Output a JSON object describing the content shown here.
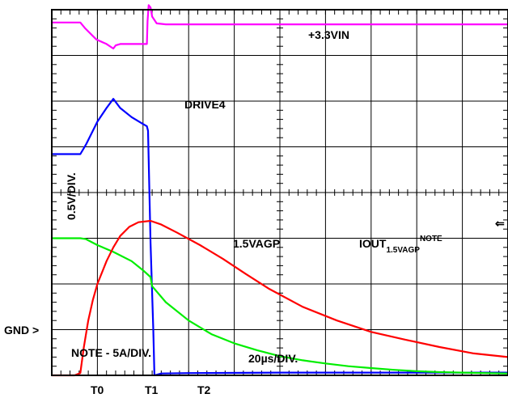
{
  "chart_data": {
    "type": "line",
    "x_unit_label": "20µs/DIV.",
    "x_range": [
      0,
      200
    ],
    "y_range": [
      0,
      8
    ],
    "grid": true,
    "time_markers": [
      {
        "name": "T0",
        "x": 12.5
      },
      {
        "name": "T1",
        "x": 27.0
      },
      {
        "name": "T2",
        "x": 43.3
      }
    ],
    "series": [
      {
        "name": "+3.3VIN",
        "color": "#ff00ff",
        "points": [
          [
            0,
            7.72
          ],
          [
            12.5,
            7.72
          ],
          [
            14.5,
            7.6
          ],
          [
            19.5,
            7.35
          ],
          [
            24,
            7.25
          ],
          [
            27,
            7.15
          ],
          [
            28,
            7.22
          ],
          [
            30,
            7.25
          ],
          [
            41.7,
            7.25
          ],
          [
            42,
            7.75
          ],
          [
            42.5,
            8.1
          ],
          [
            43.3,
            8.05
          ],
          [
            44,
            7.85
          ],
          [
            46,
            7.7
          ],
          [
            50,
            7.68
          ],
          [
            200,
            7.68
          ]
        ]
      },
      {
        "name": "DRIVE4",
        "color": "#0000ff",
        "points": [
          [
            0,
            4.84
          ],
          [
            10,
            4.84
          ],
          [
            12.5,
            4.84
          ],
          [
            15,
            5.05
          ],
          [
            20,
            5.55
          ],
          [
            24,
            5.85
          ],
          [
            27,
            6.05
          ],
          [
            30,
            5.85
          ],
          [
            35,
            5.65
          ],
          [
            40,
            5.5
          ],
          [
            41.7,
            5.45
          ],
          [
            42.2,
            5.35
          ],
          [
            43.3,
            2.9
          ],
          [
            44.5,
            1.0
          ],
          [
            45,
            0.0
          ],
          [
            48,
            0.04
          ],
          [
            60,
            0.05
          ],
          [
            100,
            0.06
          ],
          [
            150,
            0.06
          ],
          [
            200,
            0.06
          ]
        ]
      },
      {
        "name": "1.5VAGP",
        "color": "#00ee00",
        "points": [
          [
            0,
            3.0
          ],
          [
            5,
            3.0
          ],
          [
            12.5,
            3.0
          ],
          [
            15,
            2.98
          ],
          [
            20,
            2.85
          ],
          [
            27,
            2.7
          ],
          [
            35,
            2.5
          ],
          [
            40,
            2.3
          ],
          [
            43.3,
            2.15
          ],
          [
            44,
            1.95
          ],
          [
            50,
            1.6
          ],
          [
            60,
            1.2
          ],
          [
            70,
            0.9
          ],
          [
            80,
            0.7
          ],
          [
            90,
            0.55
          ],
          [
            100,
            0.42
          ],
          [
            110,
            0.33
          ],
          [
            120,
            0.26
          ],
          [
            130,
            0.2
          ],
          [
            140,
            0.16
          ],
          [
            150,
            0.12
          ],
          [
            160,
            0.09
          ],
          [
            170,
            0.07
          ],
          [
            180,
            0.06
          ],
          [
            190,
            0.05
          ],
          [
            200,
            0.04
          ]
        ]
      },
      {
        "name": "IOUT",
        "name_subscript": "1.5VAGP",
        "name_superscript": "NOTE",
        "color": "#ff0000",
        "points": [
          [
            0,
            0.0
          ],
          [
            10,
            0.0
          ],
          [
            12.5,
            0.05
          ],
          [
            14,
            0.6
          ],
          [
            16,
            1.2
          ],
          [
            18,
            1.65
          ],
          [
            20,
            2.0
          ],
          [
            24,
            2.5
          ],
          [
            27,
            2.8
          ],
          [
            30,
            3.05
          ],
          [
            34,
            3.25
          ],
          [
            38,
            3.35
          ],
          [
            43.3,
            3.38
          ],
          [
            48,
            3.3
          ],
          [
            55,
            3.12
          ],
          [
            65,
            2.85
          ],
          [
            75,
            2.55
          ],
          [
            85,
            2.22
          ],
          [
            95,
            1.9
          ],
          [
            110,
            1.5
          ],
          [
            125,
            1.2
          ],
          [
            140,
            0.95
          ],
          [
            155,
            0.78
          ],
          [
            170,
            0.62
          ],
          [
            185,
            0.48
          ],
          [
            200,
            0.4
          ]
        ]
      }
    ],
    "annotations": {
      "ylabel": "0.5V/DIV.",
      "gnd": "GND >",
      "note": "NOTE - 5A/DIV.",
      "time": "20µs/DIV.",
      "edge_marker": "⇐"
    }
  }
}
